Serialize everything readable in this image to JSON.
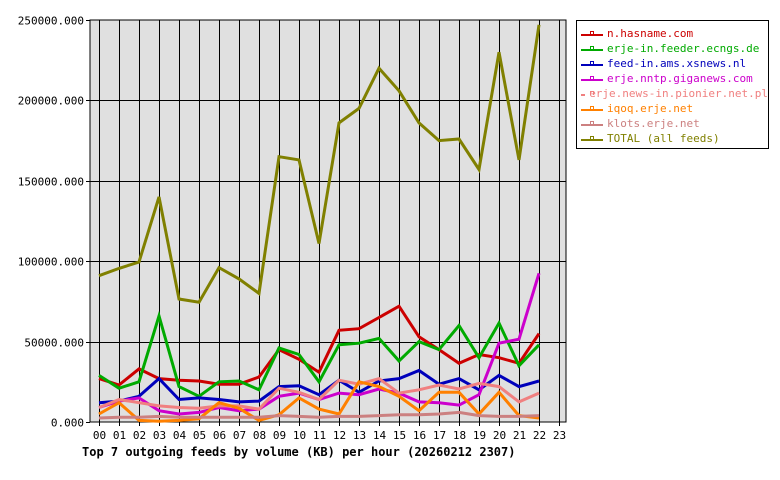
{
  "chart_data": {
    "type": "line",
    "title": "Top 7 outgoing feeds by volume (KB) per hour (20260212 2307)",
    "xlabel": "",
    "ylabel": "",
    "ylim": [
      0,
      250000
    ],
    "yticks": [
      "0.000",
      "50000.000",
      "100000.000",
      "150000.000",
      "200000.000",
      "250000.000"
    ],
    "categories": [
      "00",
      "01",
      "02",
      "03",
      "04",
      "05",
      "06",
      "07",
      "08",
      "09",
      "10",
      "11",
      "12",
      "13",
      "14",
      "15",
      "16",
      "17",
      "18",
      "19",
      "20",
      "21",
      "22",
      "23"
    ],
    "grid": true,
    "legend_position": "right",
    "series": [
      {
        "name": "n.hasname.com",
        "color": "#cc0000",
        "values": [
          27000,
          23000,
          33000,
          27000,
          26000,
          25500,
          23500,
          23500,
          28000,
          45000,
          39000,
          31000,
          57000,
          58000,
          65000,
          72000,
          53000,
          45000,
          36500,
          42000,
          40000,
          36500,
          55000,
          null
        ]
      },
      {
        "name": "erje-in.feeder.ecngs.de",
        "color": "#00aa00",
        "values": [
          29000,
          21000,
          25000,
          66000,
          22000,
          16000,
          25000,
          25500,
          20000,
          46000,
          42000,
          25000,
          48000,
          49000,
          52000,
          38000,
          50000,
          45000,
          60000,
          40000,
          61500,
          35000,
          48000,
          null
        ]
      },
      {
        "name": "feed-in.ams.xsnews.nl",
        "color": "#0000bb",
        "values": [
          12000,
          13000,
          16000,
          27000,
          14000,
          15000,
          14000,
          12500,
          13000,
          22000,
          22500,
          17000,
          26000,
          18500,
          25500,
          27000,
          32000,
          23500,
          27000,
          20000,
          29000,
          22000,
          25500,
          null
        ]
      },
      {
        "name": "erje.nntp.giganews.com",
        "color": "#cc00cc",
        "values": [
          9000,
          13000,
          15000,
          7000,
          5000,
          6000,
          9000,
          7000,
          8000,
          16000,
          18000,
          14000,
          18000,
          17000,
          20500,
          18000,
          12500,
          12000,
          10500,
          17000,
          49000,
          51500,
          92500,
          null
        ]
      },
      {
        "name": "erje.news-in.pionier.net.pl",
        "color": "#f08080",
        "values": [
          9000,
          14000,
          12000,
          10000,
          9000,
          8500,
          10000,
          10000,
          8000,
          21000,
          18500,
          14000,
          26000,
          23500,
          27000,
          18000,
          20000,
          23000,
          20500,
          24000,
          22000,
          12500,
          18000,
          null
        ]
      },
      {
        "name": "iqoq.erje.net",
        "color": "#ff8000",
        "values": [
          5000,
          12000,
          1000,
          500,
          1000,
          2000,
          12000,
          8500,
          1000,
          4500,
          15000,
          8000,
          5000,
          25000,
          22000,
          16000,
          7000,
          18500,
          18500,
          5000,
          18500,
          4000,
          2500,
          null
        ]
      },
      {
        "name": "klots.erje.net",
        "color": "#cc8080",
        "values": [
          2500,
          3000,
          3000,
          3500,
          3000,
          3000,
          3000,
          3000,
          3000,
          4000,
          3500,
          3000,
          3500,
          3500,
          4000,
          4500,
          4500,
          5000,
          6000,
          4000,
          3500,
          3500,
          4000,
          null
        ]
      },
      {
        "name": "TOTAL (all feeds)",
        "color": "#808000",
        "values": [
          91000,
          95500,
          99500,
          140000,
          76500,
          74500,
          96000,
          89000,
          80000,
          165000,
          163000,
          111000,
          186000,
          195000,
          220000,
          206000,
          186000,
          175000,
          176000,
          157000,
          230000,
          163000,
          247000,
          null
        ]
      }
    ]
  }
}
